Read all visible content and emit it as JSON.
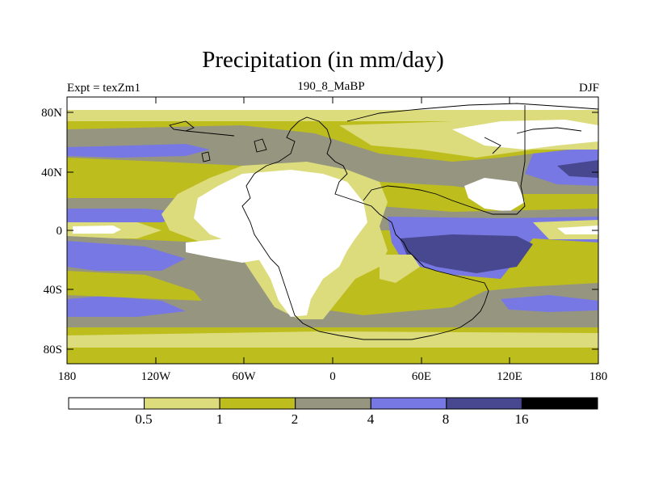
{
  "title": "Precipitation (in mm/day)",
  "left_label": "Expt = texZm1",
  "center_label": "190_8_MaBP",
  "right_label": "DJF",
  "lat_ticks": [
    "80N",
    "40N",
    "0",
    "40S",
    "80S"
  ],
  "lon_ticks": [
    "180",
    "120W",
    "60W",
    "0",
    "60E",
    "120E",
    "180"
  ],
  "colorbar": {
    "labels": [
      "0.5",
      "1",
      "2",
      "4",
      "8",
      "16"
    ],
    "colors": [
      "#ffffff",
      "#dcdc7c",
      "#bdbd1e",
      "#969680",
      "#7878e4",
      "#484890",
      "#000000"
    ]
  },
  "colors": {
    "white": "#ffffff",
    "light_yellow": "#dcdc7c",
    "olive": "#bdbd1e",
    "gray": "#969680",
    "blue": "#7878e4",
    "dark_blue": "#484890"
  }
}
